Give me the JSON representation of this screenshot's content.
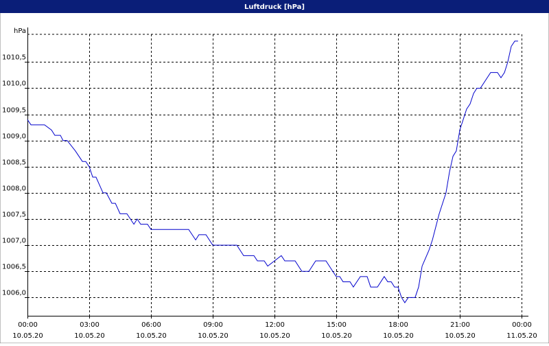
{
  "chart_data": {
    "type": "line",
    "title": "Luftdruck [hPa]",
    "y_unit": "hPa",
    "color": "#0000cc",
    "grid": true,
    "x": [
      0,
      0.17,
      0.83,
      1.17,
      1.33,
      1.6,
      1.73,
      1.93,
      2.33,
      2.67,
      2.83,
      3,
      3.17,
      3.33,
      3.67,
      3.83,
      4.1,
      4.27,
      4.5,
      4.83,
      5.17,
      5.33,
      5.5,
      5.83,
      6,
      7.83,
      8.17,
      8.33,
      8.67,
      9,
      10.17,
      10.5,
      11,
      11.17,
      11.5,
      11.67,
      12,
      12.33,
      12.5,
      13,
      13.33,
      13.67,
      14,
      14.5,
      14.83,
      15,
      15.17,
      15.33,
      15.67,
      15.83,
      16.17,
      16.5,
      16.67,
      17,
      17.33,
      17.5,
      17.67,
      17.83,
      18,
      18.17,
      18.33,
      18.5,
      18.83,
      19,
      19.17,
      19.5,
      19.67,
      20,
      20.33,
      20.5,
      20.67,
      20.83,
      21,
      21.33,
      21.5,
      21.67,
      21.83,
      22,
      22.5,
      22.83,
      23,
      23.17,
      23.33,
      23.5,
      23.67,
      23.83
    ],
    "values": [
      1009.4,
      1009.3,
      1009.3,
      1009.2,
      1009.1,
      1009.1,
      1009.0,
      1009.0,
      1008.8,
      1008.6,
      1008.6,
      1008.5,
      1008.3,
      1008.3,
      1008.0,
      1008.0,
      1007.8,
      1007.8,
      1007.6,
      1007.6,
      1007.4,
      1007.5,
      1007.4,
      1007.4,
      1007.3,
      1007.3,
      1007.1,
      1007.2,
      1007.2,
      1007.0,
      1007.0,
      1006.8,
      1006.8,
      1006.7,
      1006.7,
      1006.6,
      1006.7,
      1006.8,
      1006.7,
      1006.7,
      1006.5,
      1006.5,
      1006.7,
      1006.7,
      1006.5,
      1006.4,
      1006.4,
      1006.3,
      1006.3,
      1006.2,
      1006.4,
      1006.4,
      1006.2,
      1006.2,
      1006.4,
      1006.3,
      1006.3,
      1006.2,
      1006.2,
      1006.0,
      1005.9,
      1006.0,
      1006.0,
      1006.2,
      1006.6,
      1006.9,
      1007.1,
      1007.6,
      1008.0,
      1008.4,
      1008.7,
      1008.8,
      1009.2,
      1009.6,
      1009.7,
      1009.9,
      1010.0,
      1010.0,
      1010.3,
      1010.3,
      1010.2,
      1010.3,
      1010.5,
      1010.8,
      1010.9,
      1010.9
    ],
    "xlim": [
      0,
      24
    ],
    "xticks": [
      {
        "value": 0,
        "label": "00:00"
      },
      {
        "value": 3,
        "label": "03:00"
      },
      {
        "value": 6,
        "label": "06:00"
      },
      {
        "value": 9,
        "label": "09:00"
      },
      {
        "value": 12,
        "label": "12:00"
      },
      {
        "value": 15,
        "label": "15:00"
      },
      {
        "value": 18,
        "label": "18:00"
      },
      {
        "value": 21,
        "label": "21:00"
      },
      {
        "value": 24,
        "label": "00:00"
      }
    ],
    "xtick_dates": [
      "10.05.20",
      "10.05.20",
      "10.05.20",
      "10.05.20",
      "10.05.20",
      "10.05.20",
      "10.05.20",
      "10.05.20",
      "11.05.20"
    ],
    "ylim": [
      1005.65,
      1011.03
    ],
    "yticks": [
      {
        "value": 1006.0,
        "label": "1006,0"
      },
      {
        "value": 1006.5,
        "label": "1006,5"
      },
      {
        "value": 1007.0,
        "label": "1007,0"
      },
      {
        "value": 1007.5,
        "label": "1007,5"
      },
      {
        "value": 1008.0,
        "label": "1008,0"
      },
      {
        "value": 1008.5,
        "label": "1008,5"
      },
      {
        "value": 1009.0,
        "label": "1009,0"
      },
      {
        "value": 1009.5,
        "label": "1009,5"
      },
      {
        "value": 1010.0,
        "label": "1010,0"
      },
      {
        "value": 1010.5,
        "label": "1010,5"
      }
    ]
  }
}
